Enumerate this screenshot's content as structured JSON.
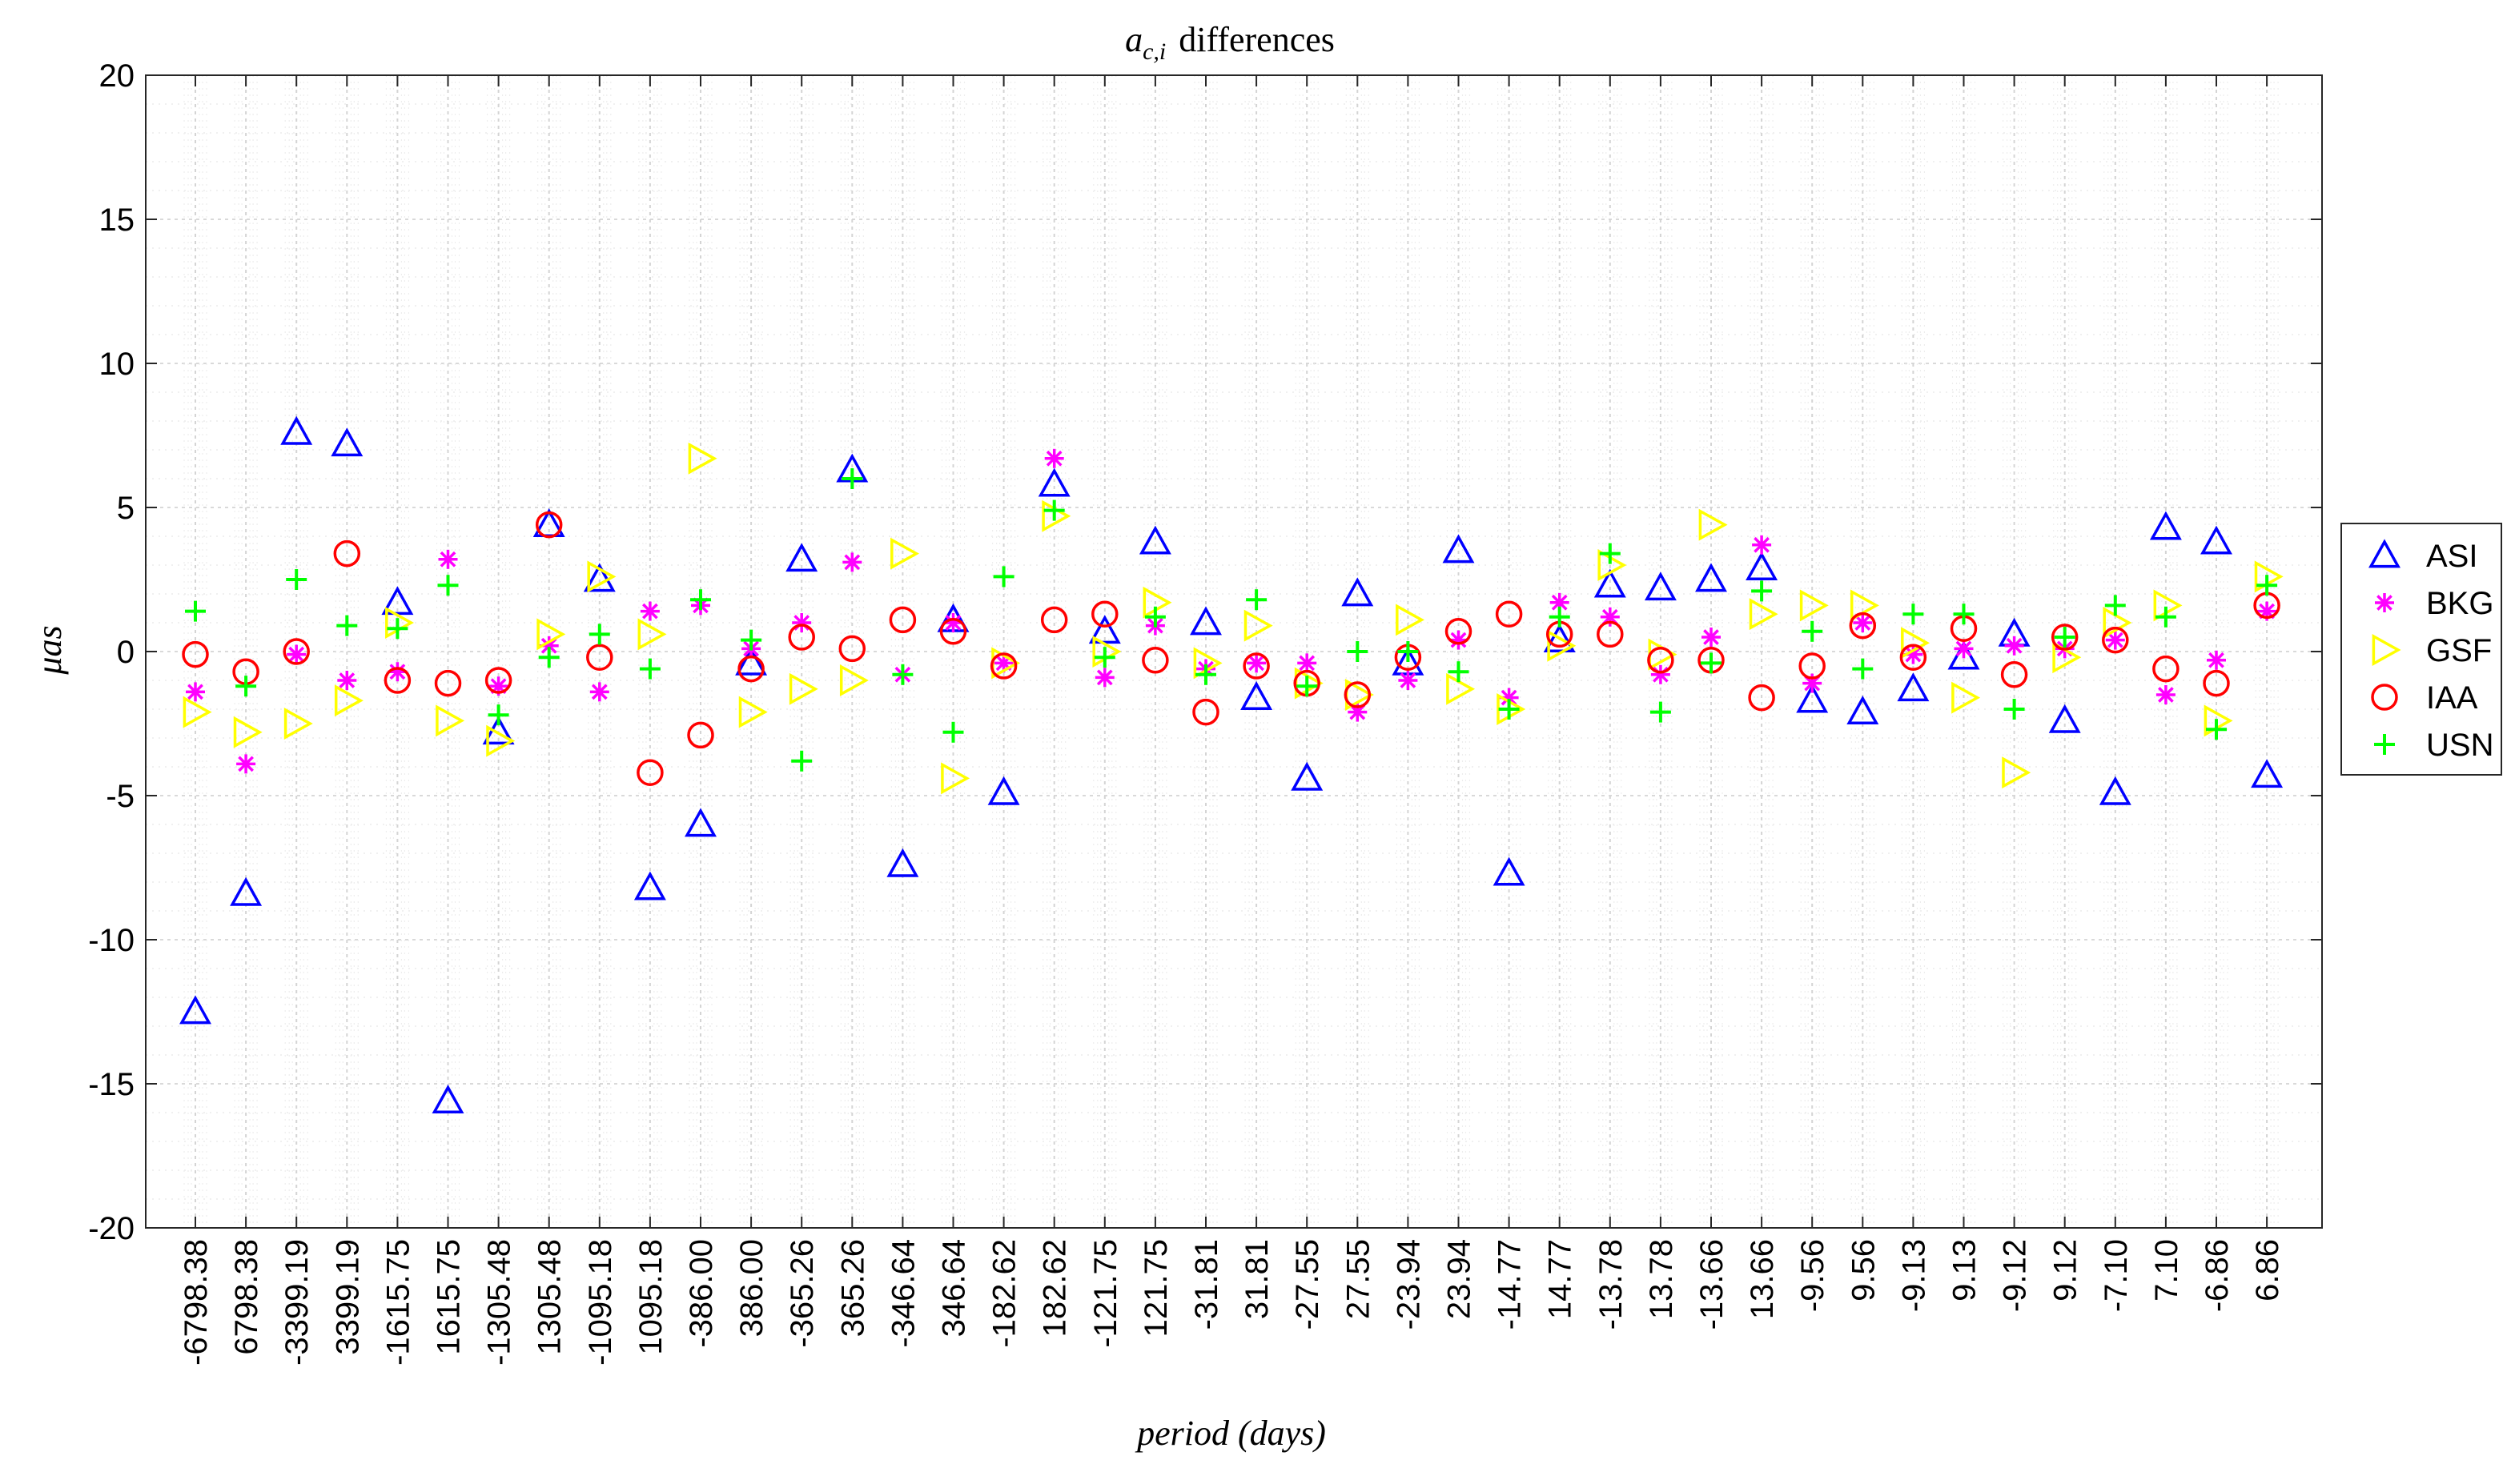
{
  "chart_data": {
    "type": "scatter",
    "title_prefix": "a",
    "title_subscript": "c,i",
    "title_suffix": "differences",
    "xlabel": "period (days)",
    "ylabel_mu": "μ",
    "ylabel_unit": "as",
    "ylim": [
      -20,
      20
    ],
    "yticks": [
      -20,
      -15,
      -10,
      -5,
      0,
      5,
      10,
      15,
      20
    ],
    "ytick_labels": [
      "-20",
      "-15",
      "-10",
      "-5",
      "0",
      "5",
      "10",
      "15",
      "20"
    ],
    "grid": true,
    "legend_position": "right",
    "categories": [
      "-6798.38",
      "6798.38",
      "-3399.19",
      "3399.19",
      "-1615.75",
      "1615.75",
      "-1305.48",
      "1305.48",
      "-1095.18",
      "1095.18",
      "-386.00",
      "386.00",
      "-365.26",
      "365.26",
      "-346.64",
      "346.64",
      "-182.62",
      "182.62",
      "-121.75",
      "121.75",
      "-31.81",
      "31.81",
      "-27.55",
      "27.55",
      "-23.94",
      "23.94",
      "-14.77",
      "14.77",
      "-13.78",
      "13.78",
      "-13.66",
      "13.66",
      "-9.56",
      "9.56",
      "-9.13",
      "9.13",
      "-9.12",
      "9.12",
      "-7.10",
      "7.10",
      "-6.86",
      "6.86"
    ],
    "series": [
      {
        "name": "ASI",
        "marker": "triangle-up",
        "color": "#0000ff",
        "values": [
          -12.5,
          -8.4,
          7.6,
          7.2,
          1.7,
          -15.6,
          -2.8,
          4.4,
          2.5,
          -8.2,
          -6.0,
          -0.4,
          3.2,
          6.3,
          -7.4,
          1.1,
          -4.9,
          5.8,
          0.7,
          3.8,
          1.0,
          -1.6,
          -4.4,
          2.0,
          -0.4,
          3.5,
          -7.7,
          0.4,
          2.3,
          2.2,
          2.5,
          2.9,
          -1.7,
          -2.1,
          -1.3,
          -0.2,
          0.6,
          -2.4,
          -4.9,
          4.3,
          3.8,
          -4.3
        ]
      },
      {
        "name": "BKG",
        "marker": "asterisk",
        "color": "#ff00ff",
        "values": [
          -1.4,
          -3.9,
          -0.1,
          -1.0,
          -0.7,
          3.2,
          -1.2,
          0.2,
          -1.4,
          1.4,
          1.6,
          0.1,
          1.0,
          3.1,
          -0.8,
          1.0,
          -0.4,
          6.7,
          -0.9,
          0.9,
          -0.6,
          -0.4,
          -0.4,
          -2.1,
          -1.0,
          0.4,
          -1.6,
          1.7,
          1.2,
          -0.8,
          0.5,
          3.7,
          -1.1,
          1.0,
          -0.1,
          0.1,
          0.2,
          0.1,
          0.4,
          -1.5,
          -0.3,
          1.4
        ]
      },
      {
        "name": "GSF",
        "marker": "triangle-right",
        "color": "#ffff00",
        "values": [
          -2.1,
          -2.8,
          -2.5,
          -1.7,
          1.0,
          -2.4,
          -3.1,
          0.6,
          2.6,
          0.6,
          6.7,
          -2.1,
          -1.3,
          -1.0,
          3.4,
          -4.4,
          -0.4,
          4.7,
          0.0,
          1.7,
          -0.4,
          0.9,
          -1.1,
          -1.5,
          1.1,
          -1.3,
          -2.0,
          0.2,
          3.0,
          -0.1,
          4.4,
          1.3,
          1.6,
          1.6,
          0.3,
          -1.6,
          -4.2,
          -0.2,
          1.0,
          1.6,
          -2.4,
          2.6
        ]
      },
      {
        "name": "IAA",
        "marker": "circle",
        "color": "#ff0000",
        "values": [
          -0.1,
          -0.7,
          0.0,
          3.4,
          -1.0,
          -1.1,
          -1.0,
          4.4,
          -0.2,
          -4.2,
          -2.9,
          -0.6,
          0.5,
          0.1,
          1.1,
          0.7,
          -0.5,
          1.1,
          1.3,
          -0.3,
          -2.1,
          -0.5,
          -1.1,
          -1.5,
          -0.2,
          0.7,
          1.3,
          0.6,
          0.6,
          -0.3,
          -0.3,
          -1.6,
          -0.5,
          0.9,
          -0.2,
          0.8,
          -0.8,
          0.5,
          0.4,
          -0.6,
          -1.1,
          1.6
        ]
      },
      {
        "name": "USN",
        "marker": "plus",
        "color": "#00ff00",
        "values": [
          1.4,
          -1.2,
          2.5,
          0.9,
          0.8,
          2.3,
          -2.2,
          -0.2,
          0.6,
          -0.6,
          1.8,
          0.4,
          -3.8,
          6.0,
          -0.8,
          -2.8,
          2.6,
          4.9,
          -0.2,
          1.2,
          -0.8,
          1.8,
          -1.2,
          0.0,
          0.0,
          -0.7,
          -2.0,
          1.2,
          3.4,
          -2.1,
          -0.4,
          2.1,
          0.7,
          -0.6,
          1.3,
          1.3,
          -2.0,
          0.5,
          1.6,
          1.2,
          -2.7,
          2.3
        ]
      }
    ]
  }
}
